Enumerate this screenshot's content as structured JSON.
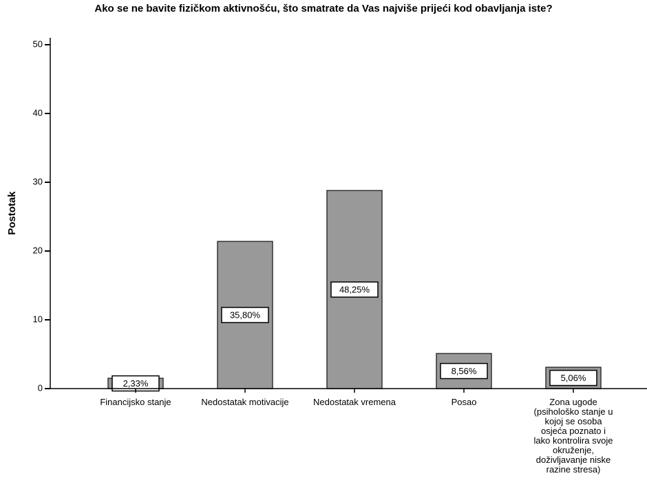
{
  "chart_data": {
    "type": "bar",
    "title": "Ako se ne bavite fizičkom aktivnošću, što smatrate da Vas najviše prijeći kod obavljanja iste?",
    "y_label": "Postotak",
    "categories": [
      "Financijsko stanje",
      "Nedostatak motivacije",
      "Nedostatak vremena",
      "Posao",
      "Zona ugode (psihološko stanje u kojoj se osoba osjeća poznato i lako kontrolira svoje okruženje, doživljavanje niske razine stresa)"
    ],
    "values": [
      1.5,
      21.4,
      28.8,
      5.1,
      3.1
    ],
    "bar_labels": [
      "2,33%",
      "35,80%",
      "48,25%",
      "8,56%",
      "5,06%"
    ],
    "color": "#999999",
    "ylim": [
      0,
      50
    ],
    "yticks": [
      0,
      10,
      20,
      30,
      40,
      50
    ],
    "grid": false
  }
}
